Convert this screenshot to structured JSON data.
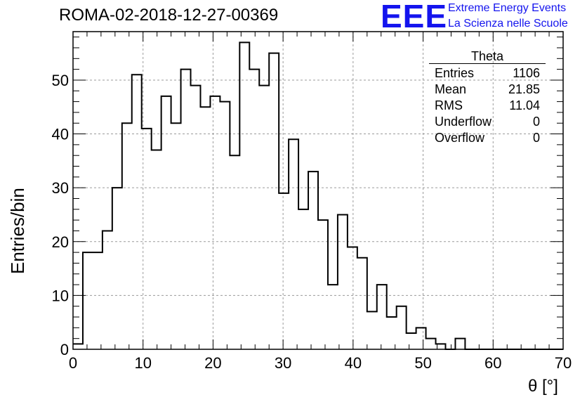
{
  "header": {
    "title": "ROMA-02-2018-12-27-00369",
    "logo": "EEE",
    "logo_line1": "Extreme Energy Events",
    "logo_line2": "La Scienza nelle Scuole"
  },
  "stats": {
    "title": "Theta",
    "rows": [
      {
        "label": "Entries",
        "value": "1106"
      },
      {
        "label": "Mean",
        "value": "21.85"
      },
      {
        "label": "RMS",
        "value": "11.04"
      },
      {
        "label": "Underflow",
        "value": "0"
      },
      {
        "label": "Overflow",
        "value": "0"
      }
    ]
  },
  "chart_data": {
    "type": "histogram",
    "title": "ROMA-02-2018-12-27-00369",
    "xlabel": "θ [°]",
    "ylabel": "Entries/bin",
    "xlim": [
      0,
      70
    ],
    "ylim": [
      0,
      59
    ],
    "bin_width": 1.4,
    "bin_edges_start": 0,
    "values": [
      1,
      18,
      18,
      22,
      30,
      42,
      51,
      41,
      37,
      47,
      42,
      52,
      49,
      45,
      47,
      46,
      36,
      57,
      52,
      49,
      55,
      29,
      39,
      26,
      33,
      24,
      12,
      25,
      19,
      17,
      7,
      12,
      6,
      8,
      3,
      4,
      2,
      1,
      0,
      2,
      0,
      0,
      0,
      0,
      0,
      0,
      0,
      0,
      0,
      0
    ],
    "x_ticks": [
      0,
      10,
      20,
      30,
      40,
      50,
      60,
      70
    ],
    "y_ticks": [
      0,
      10,
      20,
      30,
      40,
      50
    ],
    "grid": true,
    "colors": {
      "line": "#000000",
      "grid": "#9a9a9a",
      "logo": "#1414ee"
    }
  }
}
